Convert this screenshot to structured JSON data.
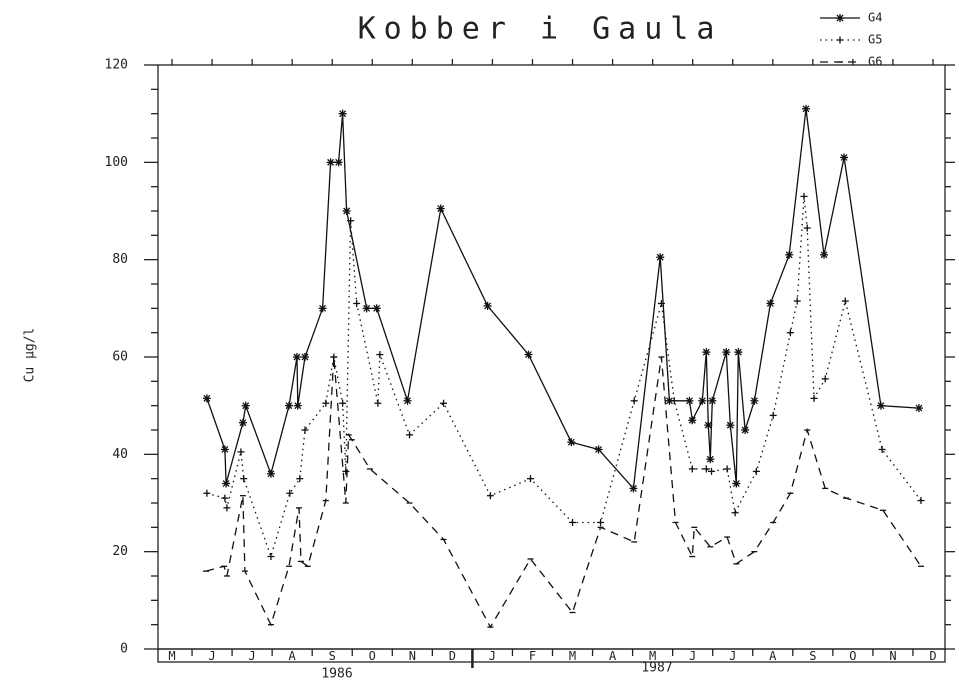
{
  "chart_data": {
    "type": "line",
    "title": "Kobber i Gaula",
    "y_label": "Cu µg/l",
    "annotations": [
      "1986",
      "1987"
    ],
    "xlim": [
      0.15,
      19.8
    ],
    "xticks": [
      {
        "value": 0.5,
        "label": "M"
      },
      {
        "value": 1.5,
        "label": "J"
      },
      {
        "value": 2.5,
        "label": "J"
      },
      {
        "value": 3.5,
        "label": "A"
      },
      {
        "value": 4.5,
        "label": "S"
      },
      {
        "value": 5.5,
        "label": "O"
      },
      {
        "value": 6.5,
        "label": "N"
      },
      {
        "value": 7.5,
        "label": "D"
      },
      {
        "value": 8.5,
        "label": "J"
      },
      {
        "value": 9.5,
        "label": "F"
      },
      {
        "value": 10.5,
        "label": "M"
      },
      {
        "value": 11.5,
        "label": "A"
      },
      {
        "value": 12.5,
        "label": "M"
      },
      {
        "value": 13.5,
        "label": "J"
      },
      {
        "value": 14.5,
        "label": "J"
      },
      {
        "value": 15.5,
        "label": "A"
      },
      {
        "value": 16.5,
        "label": "S"
      },
      {
        "value": 17.5,
        "label": "O"
      },
      {
        "value": 18.5,
        "label": "N"
      },
      {
        "value": 19.5,
        "label": "D"
      }
    ],
    "ylim": [
      0,
      120
    ],
    "yticks": [
      0,
      20,
      40,
      60,
      80,
      100,
      120
    ],
    "legend": "top-right",
    "series": [
      {
        "name": "G4",
        "color": "#111111",
        "style": "solid",
        "marker": "star",
        "x": [
          1.37,
          1.82,
          1.85,
          2.27,
          2.34,
          2.97,
          3.42,
          3.62,
          3.64,
          3.82,
          4.26,
          4.46,
          4.66,
          4.76,
          4.86,
          5.36,
          5.61,
          6.38,
          7.21,
          8.38,
          9.4,
          10.47,
          11.15,
          12.02,
          12.69,
          12.92,
          13.42,
          13.49,
          13.74,
          13.84,
          13.89,
          13.94,
          13.99,
          14.34,
          14.44,
          14.59,
          14.64,
          14.81,
          15.04,
          15.44,
          15.91,
          16.33,
          16.78,
          17.28,
          18.2,
          19.15
        ],
        "values": [
          51.5,
          41,
          34,
          46.5,
          50,
          36,
          50,
          60,
          50,
          60,
          70,
          100,
          100,
          110,
          90,
          70,
          70,
          51,
          90.5,
          70.5,
          60.5,
          42.5,
          41,
          33,
          80.5,
          51,
          51,
          47,
          51,
          61,
          46,
          39,
          51,
          61,
          46,
          34,
          61,
          45,
          51,
          71,
          81,
          111,
          81,
          101,
          50,
          49.5
        ]
      },
      {
        "name": "G5",
        "color": "#111111",
        "style": "dotted",
        "marker": "plus",
        "x": [
          1.37,
          1.82,
          1.87,
          2.22,
          2.29,
          2.97,
          3.44,
          3.69,
          3.82,
          4.34,
          4.54,
          4.76,
          4.84,
          4.96,
          5.11,
          5.64,
          5.69,
          6.43,
          7.28,
          8.45,
          9.45,
          10.5,
          11.2,
          12.04,
          12.72,
          13.04,
          13.49,
          13.84,
          13.97,
          14.36,
          14.56,
          15.09,
          15.51,
          15.94,
          16.11,
          16.28,
          16.36,
          16.53,
          16.81,
          17.31,
          18.23,
          19.2
        ],
        "values": [
          32,
          31,
          29,
          40.5,
          35,
          19,
          32,
          35,
          45,
          50.5,
          60,
          50.5,
          36.5,
          88,
          71,
          50.5,
          60.5,
          44,
          50.5,
          31.5,
          35,
          26,
          26,
          51,
          71,
          51,
          37,
          37,
          36.5,
          37,
          28,
          36.5,
          48,
          65,
          71.5,
          93,
          86.5,
          51.5,
          55.5,
          71.5,
          41,
          30.5
        ]
      },
      {
        "name": "G6",
        "color": "#111111",
        "style": "dashed",
        "marker": "tick",
        "x": [
          1.35,
          1.8,
          1.87,
          2.27,
          2.32,
          2.97,
          3.42,
          3.67,
          3.72,
          3.89,
          4.34,
          4.54,
          4.84,
          4.91,
          4.99,
          5.44,
          6.43,
          7.28,
          8.45,
          9.45,
          10.5,
          11.2,
          12.04,
          12.72,
          13.07,
          13.49,
          13.54,
          13.94,
          14.36,
          14.59,
          15.04,
          15.51,
          15.94,
          16.36,
          16.81,
          17.33,
          18.25,
          19.2
        ],
        "values": [
          16,
          17,
          15,
          31.5,
          16,
          5,
          17,
          29,
          18,
          17,
          30.5,
          60,
          30,
          44,
          43,
          37,
          30,
          22.5,
          4.5,
          18.5,
          7.5,
          25,
          22,
          60,
          26,
          19,
          25,
          21,
          23,
          17.5,
          20,
          26,
          32,
          45,
          33,
          31,
          28.5,
          17
        ]
      }
    ]
  }
}
